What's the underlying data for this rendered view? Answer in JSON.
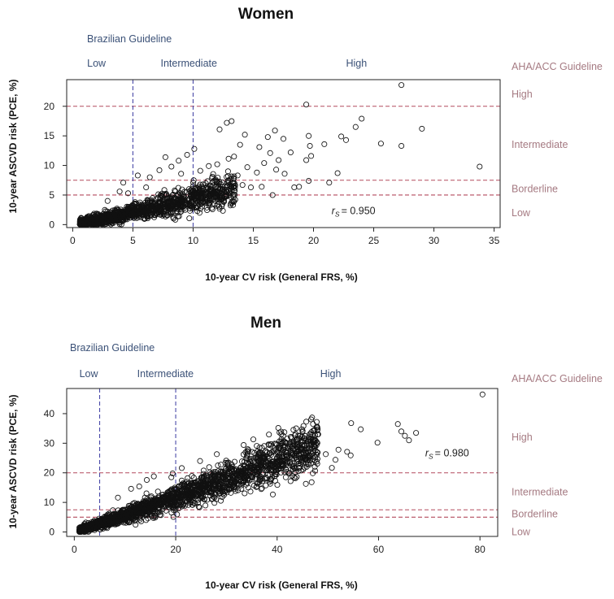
{
  "colors": {
    "blue_line": "#4a4aa8",
    "red_line": "#b44b5e",
    "blue_text": "#3b5177",
    "red_text": "#a57a82",
    "point": "#111111"
  },
  "chart_data": [
    {
      "type": "scatter",
      "title": "Women",
      "xlabel": "10-year CV risk (General FRS, %)",
      "ylabel": "10-year ASCVD risk (PCE, %)",
      "xlim": [
        -0.5,
        35.5
      ],
      "ylim": [
        -0.5,
        24.5
      ],
      "x_ticks": [
        0,
        5,
        10,
        15,
        20,
        25,
        30,
        35
      ],
      "y_ticks": [
        0,
        5,
        10,
        15,
        20
      ],
      "vlines": [
        5,
        10
      ],
      "hlines": [
        5,
        7.5,
        20
      ],
      "correlation_label": "= 0.950",
      "correlation_symbol": "r",
      "correlation_sub": "S",
      "correlation_pos": [
        21.5,
        1.8
      ],
      "brazilian_heading": "Brazilian Guideline",
      "brazilian_categories": [
        {
          "label": "Low",
          "x": 1.2
        },
        {
          "label": "Intermediate",
          "x": 7.3
        },
        {
          "label": "High",
          "x": 22.7
        }
      ],
      "aha_heading": "AHA/ACC Guideline",
      "aha_categories": [
        {
          "label": "High",
          "y": 22.0
        },
        {
          "label": "Intermediate",
          "y": 13.5
        },
        {
          "label": "Borderline",
          "y": 6.0
        },
        {
          "label": "Low",
          "y": 2.0
        }
      ],
      "outliers": [
        [
          27.3,
          23.6
        ],
        [
          19.4,
          20.3
        ],
        [
          29.0,
          16.2
        ],
        [
          33.8,
          9.8
        ],
        [
          24.0,
          17.9
        ],
        [
          23.5,
          16.5
        ],
        [
          22.7,
          14.3
        ],
        [
          22.3,
          14.9
        ],
        [
          25.6,
          13.7
        ],
        [
          27.3,
          13.3
        ],
        [
          22.0,
          8.7
        ],
        [
          20.9,
          13.6
        ],
        [
          19.6,
          15.0
        ],
        [
          19.7,
          13.3
        ],
        [
          19.8,
          11.6
        ],
        [
          19.4,
          10.9
        ],
        [
          16.8,
          15.9
        ],
        [
          16.2,
          14.8
        ],
        [
          15.5,
          13.1
        ],
        [
          13.9,
          13.5
        ],
        [
          13.2,
          17.5
        ],
        [
          12.8,
          17.2
        ],
        [
          12.2,
          16.1
        ],
        [
          14.3,
          15.2
        ],
        [
          17.5,
          14.5
        ],
        [
          18.1,
          12.2
        ],
        [
          17.1,
          10.9
        ],
        [
          16.9,
          9.3
        ],
        [
          18.8,
          6.4
        ],
        [
          19.6,
          7.4
        ],
        [
          17.6,
          8.6
        ],
        [
          15.7,
          6.4
        ],
        [
          16.6,
          5.0
        ],
        [
          10.1,
          12.8
        ],
        [
          9.5,
          11.8
        ],
        [
          8.8,
          10.8
        ],
        [
          7.7,
          11.4
        ],
        [
          11.3,
          9.9
        ],
        [
          13.4,
          11.5
        ],
        [
          12.9,
          9.0
        ],
        [
          14.5,
          9.7
        ],
        [
          15.3,
          8.8
        ],
        [
          21.3,
          7.1
        ],
        [
          18.4,
          6.3
        ],
        [
          14.1,
          6.7
        ],
        [
          13.5,
          4.2
        ],
        [
          14.8,
          6.3
        ],
        [
          12.4,
          6.4
        ],
        [
          11.0,
          5.4
        ],
        [
          11.6,
          8.1
        ],
        [
          12.0,
          10.2
        ],
        [
          13.7,
          8.3
        ],
        [
          15.9,
          10.4
        ],
        [
          16.4,
          12.1
        ],
        [
          8.2,
          9.8
        ],
        [
          9.0,
          8.6
        ],
        [
          10.6,
          9.1
        ],
        [
          6.4,
          8.0
        ],
        [
          7.2,
          9.2
        ],
        [
          4.2,
          7.1
        ],
        [
          5.4,
          8.3
        ],
        [
          6.1,
          6.3
        ],
        [
          3.9,
          5.6
        ],
        [
          2.9,
          4.0
        ],
        [
          4.6,
          5.3
        ]
      ],
      "band": {
        "x_range": [
          0.6,
          13.5
        ],
        "count": 1500,
        "seed": 7
      }
    },
    {
      "type": "scatter",
      "title": "Men",
      "xlabel": "10-year CV risk (General FRS, %)",
      "ylabel": "10-year ASCVD risk (PCE, %)",
      "xlim": [
        -1.5,
        83.5
      ],
      "ylim": [
        -1.5,
        48.5
      ],
      "x_ticks": [
        0,
        20,
        40,
        60,
        80
      ],
      "y_ticks": [
        0,
        10,
        20,
        30,
        40
      ],
      "vlines": [
        5,
        20
      ],
      "hlines": [
        5,
        7.5,
        20
      ],
      "correlation_label": "= 0.980",
      "correlation_symbol": "r",
      "correlation_sub": "S",
      "correlation_pos": [
        69.2,
        25.5
      ],
      "brazilian_heading": "Brazilian Guideline",
      "brazilian_categories": [
        {
          "label": "Low",
          "x": 1.0
        },
        {
          "label": "Intermediate",
          "x": 12.4
        },
        {
          "label": "High",
          "x": 48.5
        }
      ],
      "aha_heading": "AHA/ACC Guideline",
      "aha_categories": [
        {
          "label": "High",
          "y": 32.0
        },
        {
          "label": "Intermediate",
          "y": 13.5
        },
        {
          "label": "Borderline",
          "y": 6.0
        },
        {
          "label": "Low",
          "y": 0.0
        }
      ],
      "outliers": [
        [
          80.5,
          46.5
        ],
        [
          46.9,
          38.7
        ],
        [
          54.6,
          36.8
        ],
        [
          56.5,
          34.7
        ],
        [
          63.8,
          36.5
        ],
        [
          64.5,
          34.0
        ],
        [
          65.2,
          32.5
        ],
        [
          66.0,
          31.0
        ],
        [
          67.4,
          33.5
        ],
        [
          59.8,
          30.2
        ],
        [
          48.1,
          33.0
        ],
        [
          47.4,
          28.5
        ],
        [
          49.6,
          26.3
        ],
        [
          46.2,
          31.2
        ],
        [
          52.1,
          27.8
        ],
        [
          54.5,
          25.9
        ],
        [
          53.8,
          27.1
        ],
        [
          41.2,
          32.5
        ],
        [
          38.3,
          29.6
        ],
        [
          35.3,
          31.3
        ],
        [
          33.4,
          29.4
        ],
        [
          28.1,
          26.3
        ],
        [
          24.8,
          24.0
        ],
        [
          21.2,
          21.6
        ],
        [
          19.4,
          19.8
        ],
        [
          14.3,
          17.6
        ],
        [
          15.7,
          18.8
        ],
        [
          11.2,
          14.6
        ],
        [
          12.8,
          15.4
        ],
        [
          8.6,
          11.6
        ],
        [
          43.5,
          29.4
        ],
        [
          45.8,
          24.9
        ],
        [
          39.6,
          22.2
        ],
        [
          44.2,
          20.6
        ],
        [
          50.8,
          21.7
        ],
        [
          36.2,
          19.8
        ],
        [
          31.6,
          18.1
        ],
        [
          29.8,
          23.4
        ],
        [
          26.6,
          21.9
        ],
        [
          42.7,
          26.8
        ],
        [
          37.4,
          24.6
        ],
        [
          33.1,
          16.5
        ],
        [
          47.8,
          23.8
        ],
        [
          51.5,
          24.4
        ]
      ],
      "band": {
        "x_range": [
          1.0,
          48.0
        ],
        "count": 2200,
        "seed": 11
      }
    }
  ]
}
